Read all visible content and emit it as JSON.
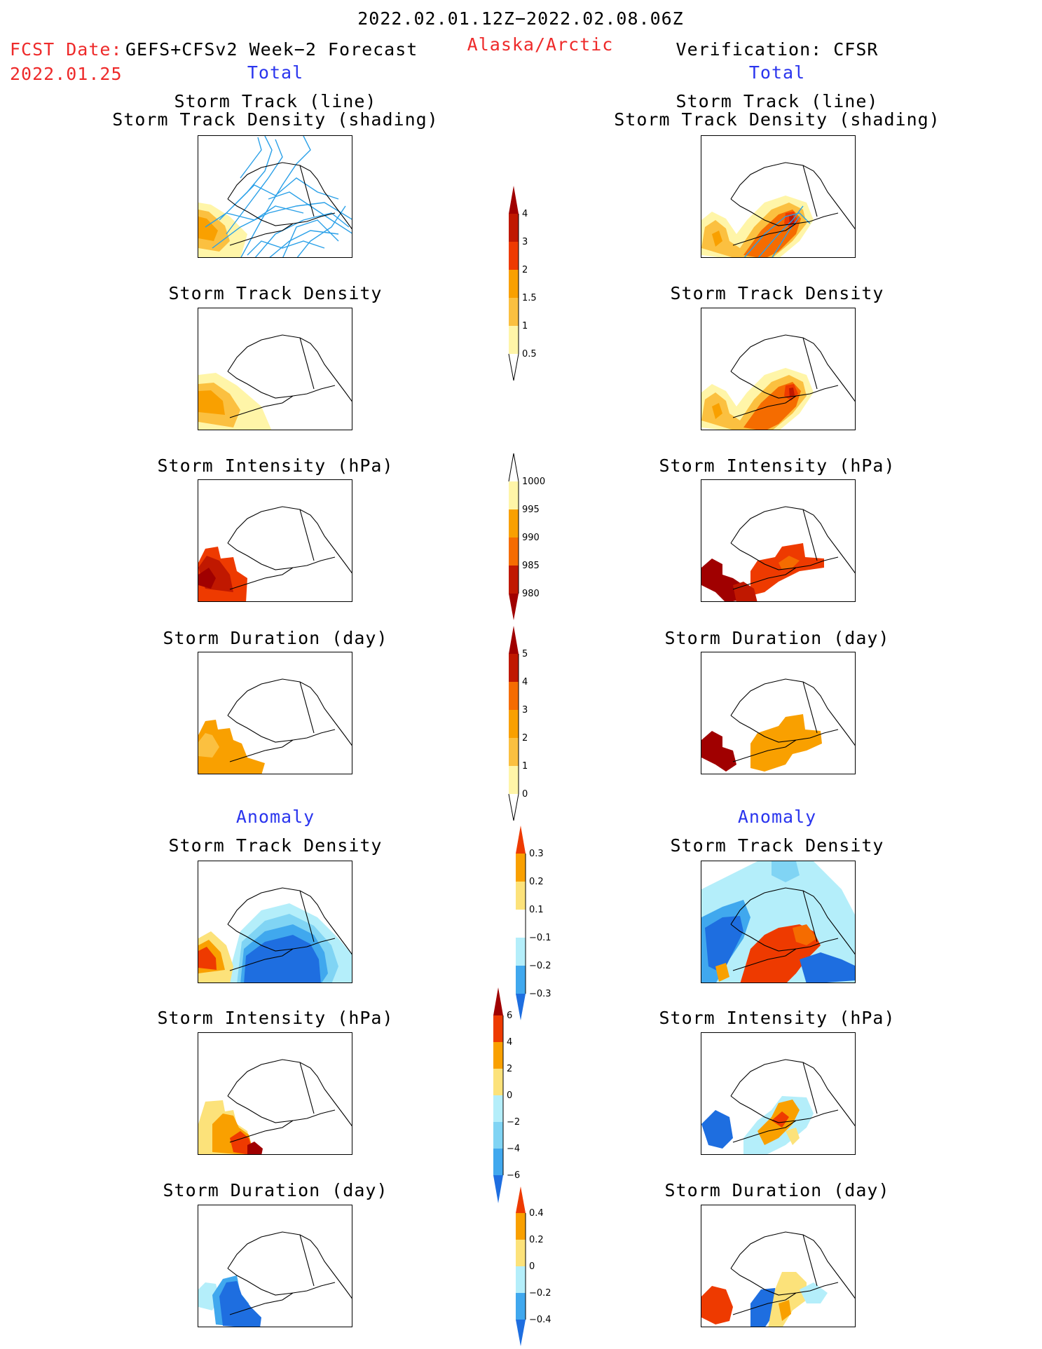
{
  "header": {
    "date_range": "2022.02.01.12Z−2022.02.08.06Z",
    "fcst_label": "FCST Date:",
    "fcst_model": "GEFS+CFSv2 Week−2 Forecast",
    "fcst_date": "2022.01.25",
    "region": "Alaska/Arctic",
    "verification": "Verification: CFSR"
  },
  "sections": {
    "total": "Total",
    "anomaly": "Anomaly"
  },
  "panels": {
    "track_title_1": "Storm Track (line)",
    "track_title_2": "Storm Track Density (shading)",
    "density": "Storm Track Density",
    "intensity": "Storm Intensity (hPa)",
    "duration": "Storm Duration (day)"
  },
  "colorbars": {
    "total_density": [
      "0.5",
      "1",
      "1.5",
      "2",
      "3",
      "4"
    ],
    "total_intensity": [
      "980",
      "985",
      "990",
      "995",
      "1000"
    ],
    "total_duration": [
      "0",
      "1",
      "2",
      "3",
      "4",
      "5"
    ],
    "anom_density": [
      "−0.3",
      "−0.2",
      "−0.1",
      "0.1",
      "0.2",
      "0.3"
    ],
    "anom_intensity": [
      "−6",
      "−4",
      "−2",
      "0",
      "2",
      "4",
      "6"
    ],
    "anom_duration": [
      "−0.4",
      "−0.2",
      "0",
      "0.2",
      "0.4"
    ]
  },
  "colors": {
    "light_yellow": "#fff5a8",
    "yellow": "#fce27a",
    "light_orange": "#fbc040",
    "orange": "#f9a000",
    "dark_orange": "#f56c00",
    "red": "#ee3a00",
    "dark_red": "#c01800",
    "maroon": "#a00000",
    "light_cyan": "#b4eefa",
    "light_blue": "#80d4f4",
    "mid_blue": "#40a8ee",
    "blue": "#1e6ee0",
    "track_line": "#2aa0e8",
    "title_blue": "#2a35ee",
    "title_red": "#ee2a2a"
  }
}
